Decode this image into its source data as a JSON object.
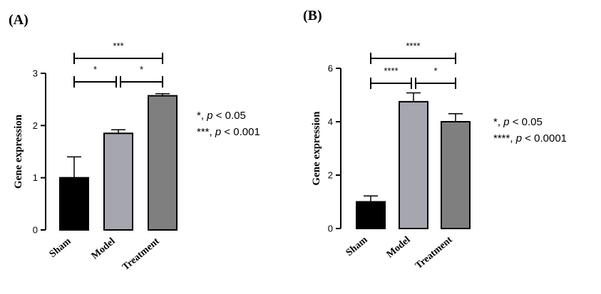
{
  "chart_data": [
    {
      "type": "bar",
      "panel_label": "(A)",
      "categories": [
        "Sham",
        "Model",
        "Treatment"
      ],
      "values": [
        1.0,
        1.85,
        2.57
      ],
      "error": [
        0.4,
        0.07,
        0.04
      ],
      "colors": [
        "#000000",
        "#a6a6ae",
        "#7f7f7f"
      ],
      "ylabel": "Gene expression",
      "ylim": [
        0,
        3
      ],
      "yticks": [
        0,
        1,
        2,
        3
      ],
      "comparisons": [
        {
          "from": 0,
          "to": 2,
          "label": "***"
        },
        {
          "from": 0,
          "to": 1,
          "label": "*"
        },
        {
          "from": 1,
          "to": 2,
          "label": "*"
        }
      ],
      "legend": [
        {
          "stars": "*",
          "p": "p",
          "threshold": " < 0.05"
        },
        {
          "stars": "***",
          "p": "p",
          "threshold": " < 0.001"
        }
      ]
    },
    {
      "type": "bar",
      "panel_label": "(B)",
      "categories": [
        "Sham",
        "Model",
        "Treatment"
      ],
      "values": [
        1.0,
        4.75,
        4.0
      ],
      "error": [
        0.22,
        0.33,
        0.3
      ],
      "colors": [
        "#000000",
        "#a6a6ae",
        "#7f7f7f"
      ],
      "ylabel": "Gene expression",
      "ylim": [
        0,
        6
      ],
      "yticks": [
        0,
        2,
        4,
        6
      ],
      "comparisons": [
        {
          "from": 0,
          "to": 2,
          "label": "****"
        },
        {
          "from": 0,
          "to": 1,
          "label": "****"
        },
        {
          "from": 1,
          "to": 2,
          "label": "*"
        }
      ],
      "legend": [
        {
          "stars": "*",
          "p": "p",
          "threshold": " < 0.05"
        },
        {
          "stars": "****",
          "p": "p",
          "threshold": " < 0.0001"
        }
      ]
    }
  ]
}
